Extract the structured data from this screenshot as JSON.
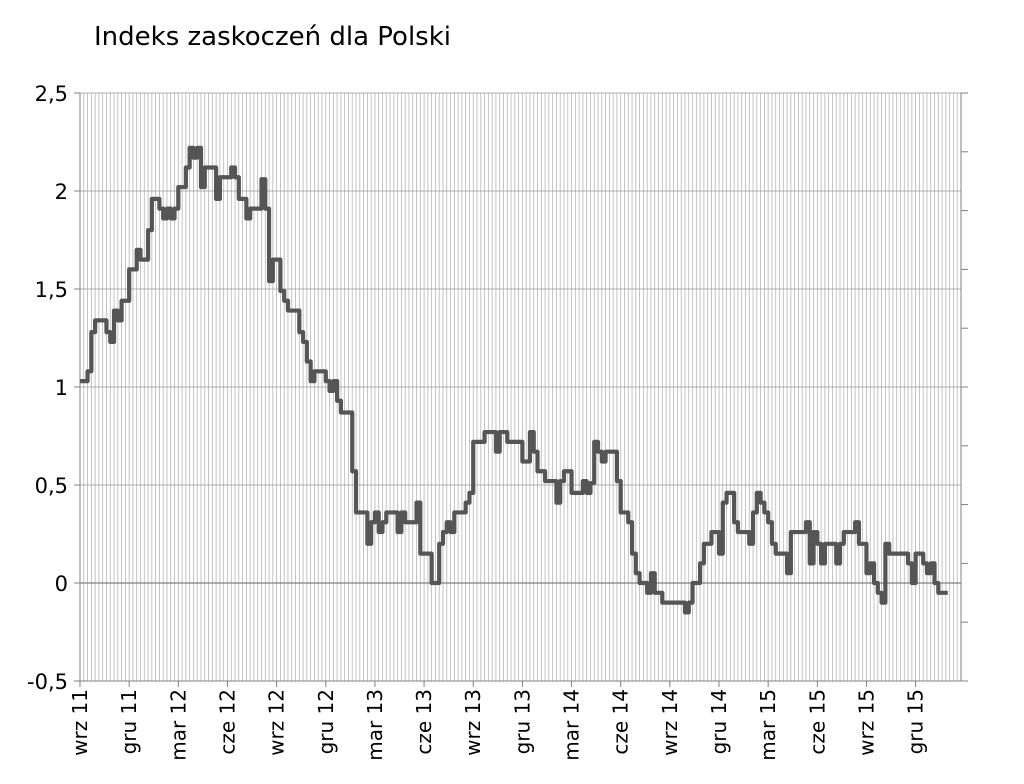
{
  "chart_data": {
    "type": "line",
    "title": "Indeks zaskoczeń dla Polski",
    "xlabel": "",
    "ylabel": "",
    "ylim": [
      -0.5,
      2.5
    ],
    "yticks": [
      {
        "value": 2.5,
        "label": "2,5"
      },
      {
        "value": 2,
        "label": "2"
      },
      {
        "value": 1.5,
        "label": "1,5"
      },
      {
        "value": 1,
        "label": "1"
      },
      {
        "value": 0.5,
        "label": "0,5"
      },
      {
        "value": 0,
        "label": "0"
      },
      {
        "value": -0.5,
        "label": "-0,5"
      }
    ],
    "xticks": [
      {
        "label": "wrz 11",
        "week": 0
      },
      {
        "label": "gru 11",
        "week": 13
      },
      {
        "label": "mar 12",
        "week": 26
      },
      {
        "label": "cze 12",
        "week": 39
      },
      {
        "label": "wrz 12",
        "week": 52
      },
      {
        "label": "gru 12",
        "week": 65
      },
      {
        "label": "mar 13",
        "week": 78
      },
      {
        "label": "cze 13",
        "week": 91
      },
      {
        "label": "wrz 13",
        "week": 104
      },
      {
        "label": "gru 13",
        "week": 117
      },
      {
        "label": "mar 14",
        "week": 130
      },
      {
        "label": "cze 14",
        "week": 143
      },
      {
        "label": "wrz 14",
        "week": 156
      },
      {
        "label": "gru 14",
        "week": 169
      },
      {
        "label": "mar 15",
        "week": 182
      },
      {
        "label": "cze 15",
        "week": 195
      },
      {
        "label": "wrz 15",
        "week": 208
      },
      {
        "label": "gru 15",
        "week": 221
      }
    ],
    "total_weeks": 233,
    "grid": "vertical-dense",
    "series": [
      {
        "color": "#555555",
        "points": [
          [
            0,
            1.03
          ],
          [
            2,
            1.08
          ],
          [
            3,
            1.28
          ],
          [
            4,
            1.34
          ],
          [
            7,
            1.28
          ],
          [
            8,
            1.23
          ],
          [
            9,
            1.39
          ],
          [
            10,
            1.34
          ],
          [
            11,
            1.44
          ],
          [
            13,
            1.6
          ],
          [
            15,
            1.7
          ],
          [
            16,
            1.65
          ],
          [
            18,
            1.8
          ],
          [
            19,
            1.96
          ],
          [
            21,
            1.91
          ],
          [
            22,
            1.86
          ],
          [
            23,
            1.91
          ],
          [
            24,
            1.86
          ],
          [
            25,
            1.91
          ],
          [
            26,
            2.02
          ],
          [
            28,
            2.12
          ],
          [
            29,
            2.22
          ],
          [
            30,
            2.17
          ],
          [
            31,
            2.22
          ],
          [
            32,
            2.02
          ],
          [
            33,
            2.12
          ],
          [
            35,
            2.12
          ],
          [
            36,
            1.96
          ],
          [
            37,
            2.07
          ],
          [
            39,
            2.07
          ],
          [
            40,
            2.12
          ],
          [
            41,
            2.07
          ],
          [
            42,
            1.96
          ],
          [
            44,
            1.86
          ],
          [
            45,
            1.91
          ],
          [
            47,
            1.91
          ],
          [
            48,
            2.06
          ],
          [
            49,
            1.91
          ],
          [
            50,
            1.54
          ],
          [
            51,
            1.65
          ],
          [
            53,
            1.49
          ],
          [
            54,
            1.44
          ],
          [
            55,
            1.39
          ],
          [
            57,
            1.39
          ],
          [
            58,
            1.28
          ],
          [
            59,
            1.23
          ],
          [
            60,
            1.13
          ],
          [
            61,
            1.03
          ],
          [
            62,
            1.08
          ],
          [
            64,
            1.08
          ],
          [
            65,
            1.03
          ],
          [
            66,
            0.98
          ],
          [
            67,
            1.03
          ],
          [
            68,
            0.93
          ],
          [
            69,
            0.87
          ],
          [
            71,
            0.87
          ],
          [
            72,
            0.57
          ],
          [
            73,
            0.36
          ],
          [
            75,
            0.36
          ],
          [
            76,
            0.2
          ],
          [
            77,
            0.31
          ],
          [
            78,
            0.36
          ],
          [
            79,
            0.26
          ],
          [
            80,
            0.31
          ],
          [
            81,
            0.36
          ],
          [
            83,
            0.36
          ],
          [
            84,
            0.26
          ],
          [
            85,
            0.36
          ],
          [
            86,
            0.31
          ],
          [
            88,
            0.31
          ],
          [
            89,
            0.41
          ],
          [
            90,
            0.15
          ],
          [
            92,
            0.15
          ],
          [
            93,
            0.0
          ],
          [
            94,
            0.0
          ],
          [
            95,
            0.2
          ],
          [
            96,
            0.26
          ],
          [
            97,
            0.31
          ],
          [
            98,
            0.26
          ],
          [
            99,
            0.36
          ],
          [
            101,
            0.36
          ],
          [
            102,
            0.41
          ],
          [
            103,
            0.46
          ],
          [
            104,
            0.72
          ],
          [
            106,
            0.72
          ],
          [
            107,
            0.77
          ],
          [
            109,
            0.77
          ],
          [
            110,
            0.67
          ],
          [
            111,
            0.77
          ],
          [
            113,
            0.72
          ],
          [
            116,
            0.72
          ],
          [
            117,
            0.62
          ],
          [
            118,
            0.62
          ],
          [
            119,
            0.77
          ],
          [
            120,
            0.67
          ],
          [
            121,
            0.57
          ],
          [
            123,
            0.52
          ],
          [
            125,
            0.52
          ],
          [
            126,
            0.41
          ],
          [
            127,
            0.52
          ],
          [
            128,
            0.57
          ],
          [
            129,
            0.57
          ],
          [
            130,
            0.46
          ],
          [
            132,
            0.46
          ],
          [
            133,
            0.52
          ],
          [
            134,
            0.46
          ],
          [
            135,
            0.51
          ],
          [
            136,
            0.72
          ],
          [
            137,
            0.67
          ],
          [
            138,
            0.62
          ],
          [
            139,
            0.67
          ],
          [
            141,
            0.67
          ],
          [
            142,
            0.52
          ],
          [
            143,
            0.36
          ],
          [
            145,
            0.31
          ],
          [
            146,
            0.15
          ],
          [
            147,
            0.05
          ],
          [
            148,
            0.0
          ],
          [
            150,
            -0.05
          ],
          [
            151,
            0.05
          ],
          [
            152,
            -0.05
          ],
          [
            154,
            -0.1
          ],
          [
            156,
            -0.1
          ],
          [
            157,
            -0.1
          ],
          [
            159,
            -0.1
          ],
          [
            160,
            -0.15
          ],
          [
            161,
            -0.1
          ],
          [
            162,
            0.0
          ],
          [
            163,
            0.0
          ],
          [
            164,
            0.1
          ],
          [
            165,
            0.2
          ],
          [
            166,
            0.2
          ],
          [
            167,
            0.26
          ],
          [
            168,
            0.26
          ],
          [
            169,
            0.15
          ],
          [
            170,
            0.41
          ],
          [
            171,
            0.46
          ],
          [
            172,
            0.46
          ],
          [
            173,
            0.31
          ],
          [
            174,
            0.26
          ],
          [
            176,
            0.26
          ],
          [
            177,
            0.2
          ],
          [
            178,
            0.36
          ],
          [
            179,
            0.46
          ],
          [
            180,
            0.41
          ],
          [
            181,
            0.36
          ],
          [
            182,
            0.31
          ],
          [
            183,
            0.2
          ],
          [
            184,
            0.15
          ],
          [
            186,
            0.15
          ],
          [
            187,
            0.05
          ],
          [
            188,
            0.26
          ],
          [
            191,
            0.26
          ],
          [
            192,
            0.31
          ],
          [
            193,
            0.1
          ],
          [
            194,
            0.26
          ],
          [
            195,
            0.2
          ],
          [
            196,
            0.1
          ],
          [
            197,
            0.2
          ],
          [
            199,
            0.2
          ],
          [
            200,
            0.1
          ],
          [
            201,
            0.2
          ],
          [
            202,
            0.26
          ],
          [
            204,
            0.26
          ],
          [
            205,
            0.31
          ],
          [
            206,
            0.2
          ],
          [
            207,
            0.2
          ],
          [
            208,
            0.05
          ],
          [
            209,
            0.1
          ],
          [
            210,
            0.0
          ],
          [
            211,
            -0.05
          ],
          [
            212,
            -0.1
          ],
          [
            213,
            0.2
          ],
          [
            214,
            0.15
          ],
          [
            216,
            0.15
          ],
          [
            218,
            0.15
          ],
          [
            219,
            0.1
          ],
          [
            220,
            0.0
          ],
          [
            221,
            0.15
          ],
          [
            222,
            0.15
          ],
          [
            223,
            0.1
          ],
          [
            224,
            0.05
          ],
          [
            225,
            0.1
          ],
          [
            226,
            0.0
          ],
          [
            227,
            -0.05
          ],
          [
            228,
            -0.05
          ]
        ]
      }
    ]
  }
}
